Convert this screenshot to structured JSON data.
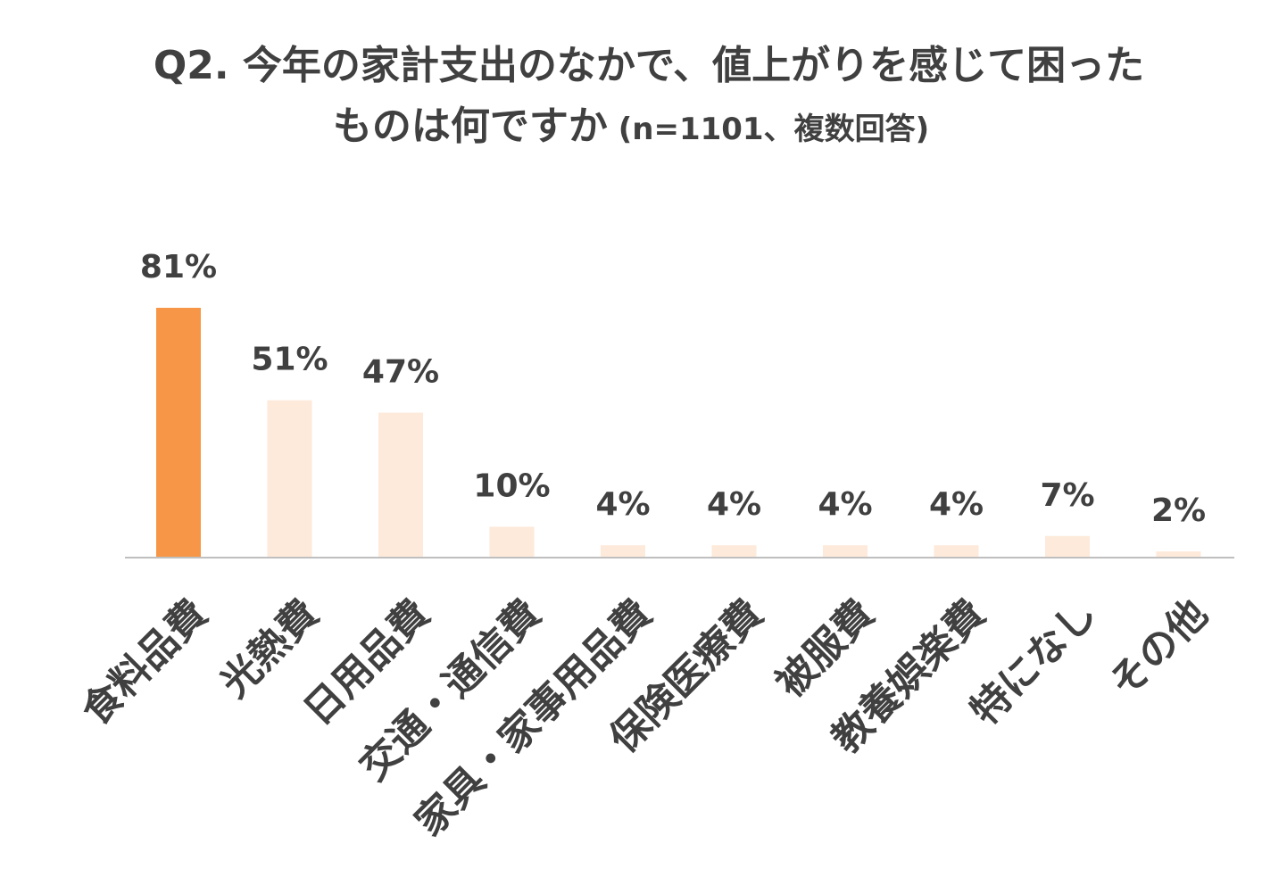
{
  "title": {
    "line1": "Q2. 今年の家計支出のなかで、値上がりを感じて困った",
    "line2": "ものは何ですか",
    "sub": " (n=1101、複数回答)"
  },
  "colors": {
    "highlight": "#F79646",
    "bar": "#FDEADA",
    "axis": "#BFBFBF",
    "text": "#404040"
  },
  "chart_data": {
    "type": "bar",
    "title": "Q2. 今年の家計支出のなかで、値上がりを感じて困ったものは何ですか (n=1101、複数回答)",
    "categories": [
      "食料品費",
      "光熱費",
      "日用品費",
      "交通・通信費",
      "家具・家事用品費",
      "保険医療費",
      "被服費",
      "教養娯楽費",
      "特になし",
      "その他"
    ],
    "values": [
      81,
      51,
      47,
      10,
      4,
      4,
      4,
      4,
      7,
      2
    ],
    "value_labels": [
      "81%",
      "51%",
      "47%",
      "10%",
      "4%",
      "4%",
      "4%",
      "4%",
      "7%",
      "2%"
    ],
    "highlight_index": 0,
    "unit": "%",
    "ylim": [
      0,
      100
    ],
    "grid": false,
    "legend": "none"
  }
}
